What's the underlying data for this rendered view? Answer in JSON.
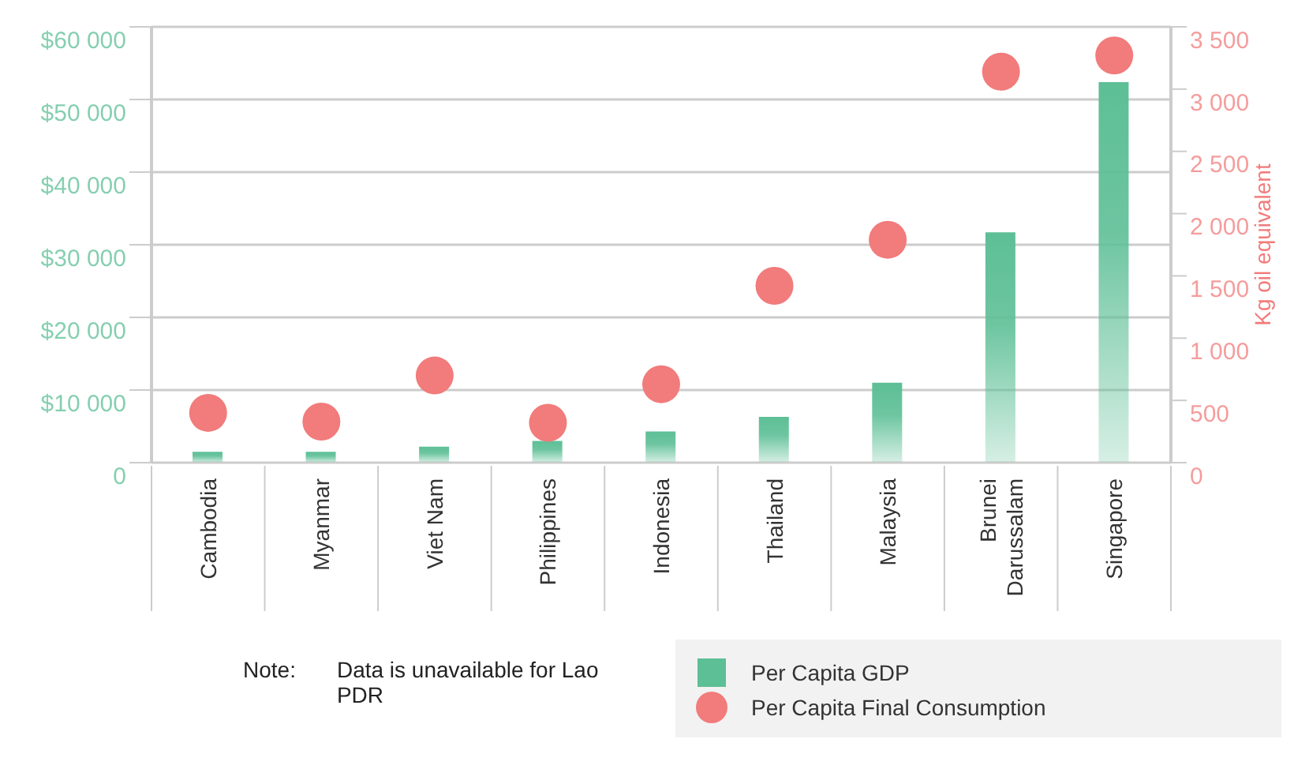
{
  "chart_data": {
    "type": "bar",
    "categories": [
      "Cambodia",
      "Myanmar",
      "Viet Nam",
      "Philippines",
      "Indonesia",
      "Thailand",
      "Malaysia",
      "Brunei Darussalam",
      "Singapore"
    ],
    "series": [
      {
        "name": "Per Capita GDP",
        "color": "#5dbf96",
        "values": [
          1500,
          1500,
          2200,
          3000,
          4300,
          6300,
          11000,
          31700,
          52400
        ]
      },
      {
        "name": "Per Capita Final Consumption",
        "type": "scatter",
        "axis": "y2",
        "color": "#f27b7b",
        "values": [
          400,
          330,
          700,
          320,
          630,
          1420,
          1790,
          3140,
          3270
        ]
      }
    ],
    "y2label": "Kg oil equivalent",
    "ylim": [
      0,
      60000
    ],
    "yticks": [
      0,
      {
        "value": 10000,
        "label": "$10 000"
      },
      {
        "value": 20000,
        "label": "$20 000"
      },
      {
        "value": 30000,
        "label": "$30 000"
      },
      {
        "value": 40000,
        "label": "$40 000"
      },
      {
        "value": 50000,
        "label": "$50 000"
      },
      {
        "value": 60000,
        "label": "$60 000"
      }
    ],
    "y2lim": [
      0,
      3500
    ],
    "y2ticks": [
      0,
      500,
      {
        "value": 1000,
        "label": "1 000"
      },
      {
        "value": 1500,
        "label": "1 500"
      },
      {
        "value": 2000,
        "label": "2 000"
      },
      {
        "value": 2500,
        "label": "2 500"
      },
      {
        "value": 3000,
        "label": "3 000"
      },
      {
        "value": 3500,
        "label": "3 500"
      }
    ],
    "grid": "y",
    "marker": "circle",
    "legend": "bottom right",
    "annotations": [
      "Note:",
      "Data is unavailable for Lao PDR"
    ]
  }
}
